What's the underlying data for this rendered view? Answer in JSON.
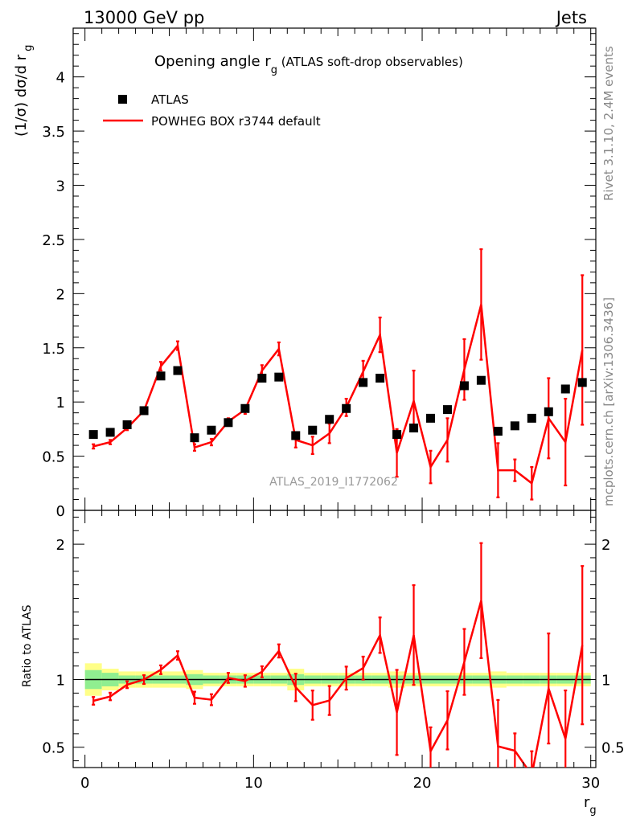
{
  "header": {
    "left": "13000 GeV pp",
    "right": "Jets"
  },
  "side_texts": {
    "rivet": "Rivet 3.1.10,  2.4M events",
    "mcplots": "mcplots.cern.ch [arXiv:1306.3436]"
  },
  "watermark": "ATLAS_2019_I1772062",
  "chart_data": {
    "type": "scatter",
    "title_main": "Opening angle r",
    "title_sub": "g",
    "title_rest": " (ATLAS soft-drop observables)",
    "ylabel": "(1/σ) dσ/d r",
    "ylabel_sub": "g",
    "xlabel": "r",
    "xlabel_sub": "g",
    "ratio_ylabel": "Ratio to ATLAS",
    "xlim": [
      -0.7,
      30.3
    ],
    "ylim_main": [
      0,
      4.45
    ],
    "ylim_ratio": [
      0.35,
      2.25
    ],
    "x_ticks": [
      "0",
      "10",
      "20",
      "30"
    ],
    "y_ticks_main": [
      "0",
      "0.5",
      "1",
      "1.5",
      "2",
      "2.5",
      "3",
      "3.5",
      "4"
    ],
    "y_ticks_ratio": [
      "0.5",
      "1",
      "2"
    ],
    "legend": {
      "data_label": "ATLAS",
      "mc_label": "POWHEG BOX r3744 default"
    },
    "colors": {
      "data": "#000000",
      "mc": "#ff0000",
      "band_inner": "#90ee90",
      "band_outer": "#ffff88"
    },
    "x": [
      0.5,
      1.5,
      2.5,
      3.5,
      4.5,
      5.5,
      6.5,
      7.5,
      8.5,
      9.5,
      10.5,
      11.5,
      12.5,
      13.5,
      14.5,
      15.5,
      16.5,
      17.5,
      18.5,
      19.5,
      20.5,
      21.5,
      22.5,
      23.5,
      24.5,
      25.5,
      26.5,
      27.5,
      28.5,
      29.5
    ],
    "data_values": [
      0.7,
      0.72,
      0.79,
      0.92,
      1.24,
      1.29,
      0.67,
      0.74,
      0.81,
      0.94,
      1.22,
      1.23,
      0.69,
      0.74,
      0.84,
      0.94,
      1.18,
      1.22,
      0.7,
      0.76,
      0.85,
      0.93,
      1.15,
      1.2,
      0.73,
      0.78,
      0.85,
      0.91,
      1.12,
      1.18
    ],
    "mc_values": [
      0.59,
      0.63,
      0.76,
      0.92,
      1.33,
      1.52,
      0.58,
      0.63,
      0.82,
      0.93,
      1.29,
      1.49,
      0.65,
      0.6,
      0.71,
      0.95,
      1.28,
      1.62,
      0.53,
      1.01,
      0.4,
      0.65,
      1.3,
      1.9,
      0.37,
      0.37,
      0.25,
      0.85,
      0.63,
      1.48
    ],
    "mc_errors": [
      0.02,
      0.02,
      0.02,
      0.03,
      0.04,
      0.04,
      0.03,
      0.03,
      0.03,
      0.04,
      0.05,
      0.06,
      0.07,
      0.08,
      0.09,
      0.08,
      0.1,
      0.16,
      0.22,
      0.28,
      0.15,
      0.2,
      0.28,
      0.51,
      0.25,
      0.1,
      0.15,
      0.37,
      0.4,
      0.69
    ],
    "ratio_band_outer": [
      0.12,
      0.08,
      0.06,
      0.06,
      0.06,
      0.06,
      0.07,
      0.05,
      0.05,
      0.05,
      0.05,
      0.05,
      0.08,
      0.05,
      0.05,
      0.05,
      0.05,
      0.05,
      0.06,
      0.05,
      0.05,
      0.05,
      0.05,
      0.05,
      0.06,
      0.05,
      0.05,
      0.05,
      0.05,
      0.05
    ],
    "ratio_band_inner": [
      0.07,
      0.05,
      0.03,
      0.03,
      0.03,
      0.03,
      0.04,
      0.03,
      0.03,
      0.03,
      0.03,
      0.03,
      0.04,
      0.03,
      0.03,
      0.03,
      0.03,
      0.03,
      0.03,
      0.03,
      0.03,
      0.03,
      0.03,
      0.03,
      0.03,
      0.03,
      0.03,
      0.03,
      0.03,
      0.03
    ]
  }
}
